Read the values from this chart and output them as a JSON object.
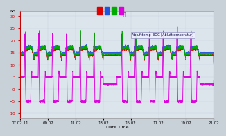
{
  "title": "nd",
  "xlabel": "Date Time",
  "bg_color": "#c8d0d8",
  "plot_bg_color": "#dce4ec",
  "x_ticks": [
    0,
    48,
    96,
    144,
    192,
    240,
    288,
    336
  ],
  "x_tick_labels": [
    "07.02.11",
    "09.02",
    "11.02",
    "13.02",
    "15.02",
    "17.02",
    "19.02",
    "21.02"
  ],
  "annotation_text": "Ablufttemp_3OG [Ablufttemperatur]",
  "y_min": -12,
  "y_max": 32,
  "line_colors": [
    "#dd0000",
    "#2255dd",
    "#00aa00",
    "#dd00dd"
  ],
  "legend_colors": [
    "#dd0000",
    "#2255dd",
    "#00aa00",
    "#dd00dd"
  ]
}
